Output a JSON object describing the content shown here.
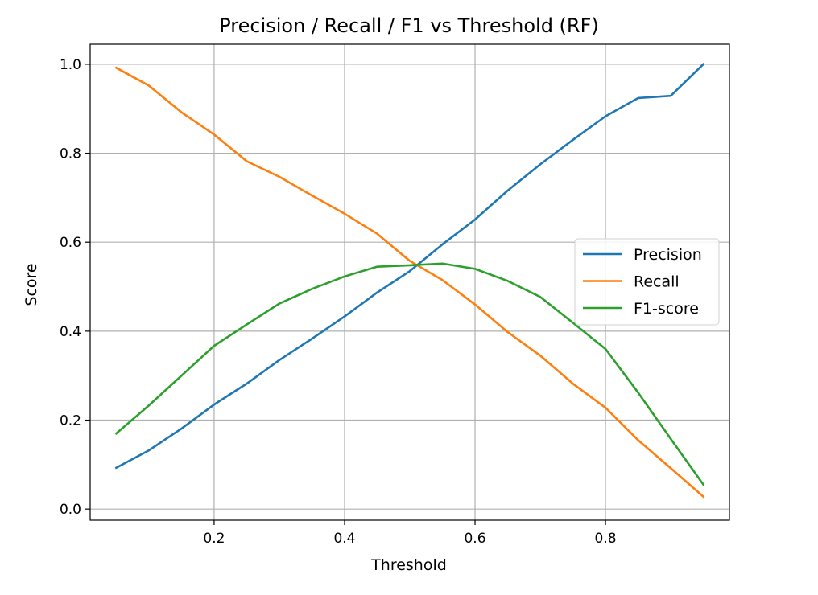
{
  "chart_data": {
    "type": "line",
    "title": "Precision / Recall / F1 vs Threshold (RF)",
    "xlabel": "Threshold",
    "ylabel": "Score",
    "xlim": [
      0.01,
      0.99
    ],
    "ylim": [
      -0.025,
      1.045
    ],
    "xticks": [
      0.2,
      0.4,
      0.6,
      0.8
    ],
    "xtick_labels": [
      "0.2",
      "0.4",
      "0.6",
      "0.8"
    ],
    "yticks": [
      0.0,
      0.2,
      0.4,
      0.6,
      0.8,
      1.0
    ],
    "ytick_labels": [
      "0.0",
      "0.2",
      "0.4",
      "0.6",
      "0.8",
      "1.0"
    ],
    "grid": true,
    "legend_position": "center-right",
    "x": [
      0.05,
      0.1,
      0.15,
      0.2,
      0.25,
      0.3,
      0.35,
      0.4,
      0.45,
      0.5,
      0.55,
      0.6,
      0.65,
      0.7,
      0.75,
      0.8,
      0.85,
      0.9,
      0.95
    ],
    "series": [
      {
        "name": "Precision",
        "color": "#1f77b4",
        "values": [
          0.093,
          0.132,
          0.181,
          0.235,
          0.282,
          0.335,
          0.383,
          0.433,
          0.487,
          0.535,
          0.595,
          0.651,
          0.716,
          0.775,
          0.83,
          0.883,
          0.924,
          0.929,
          1.0
        ]
      },
      {
        "name": "Recall",
        "color": "#ff7f0e",
        "values": [
          0.992,
          0.952,
          0.892,
          0.842,
          0.782,
          0.747,
          0.705,
          0.664,
          0.619,
          0.558,
          0.515,
          0.46,
          0.398,
          0.345,
          0.282,
          0.228,
          0.155,
          0.092,
          0.028
        ]
      },
      {
        "name": "F1-score",
        "color": "#2ca02c",
        "values": [
          0.17,
          0.233,
          0.3,
          0.367,
          0.415,
          0.462,
          0.495,
          0.523,
          0.545,
          0.548,
          0.552,
          0.54,
          0.513,
          0.477,
          0.419,
          0.36,
          0.262,
          0.158,
          0.055
        ]
      }
    ]
  }
}
